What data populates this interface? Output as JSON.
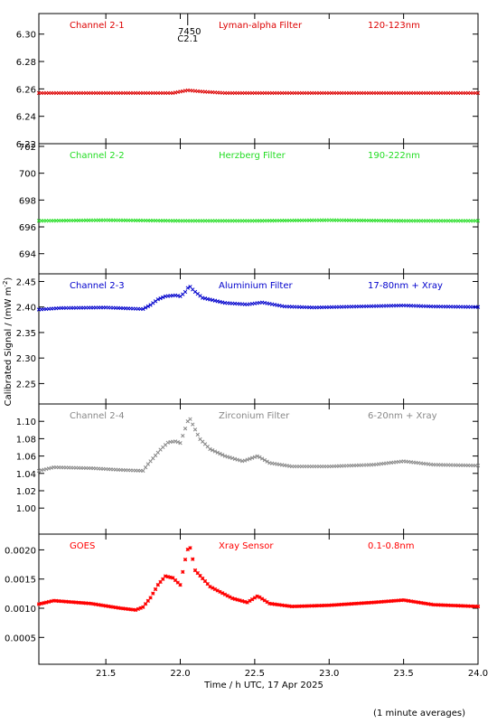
{
  "chart_data": {
    "type": "scatter",
    "xlabel": "Time / h UTC, 17 Apr 2025",
    "ylabel_main": "Calibrated Signal / (mW m",
    "ylabel_exp": "-2",
    "ylabel_close": ")",
    "footnote": "(1 minute averages)",
    "event_marker": {
      "x": 22.05,
      "line1": "7450",
      "line2": "C2.1"
    },
    "xlim": [
      21.05,
      24.0
    ],
    "xticks": [
      21.5,
      22.0,
      22.5,
      23.0,
      23.5,
      24.0
    ],
    "xtick_labels": [
      "21.5",
      "22.0",
      "22.5",
      "23.0",
      "23.5",
      "24.0"
    ],
    "panels": [
      {
        "labels": [
          "Channel 2-1",
          "Lyman-alpha Filter",
          "120-123nm"
        ],
        "color": "#dd0000",
        "marker": "cross",
        "ylim": [
          6.22,
          6.315
        ],
        "yticks": [
          6.22,
          6.24,
          6.26,
          6.28,
          6.3
        ],
        "ytick_labels": [
          "6.22",
          "6.24",
          "6.26",
          "6.28",
          "6.30"
        ],
        "series": [
          [
            21.05,
            6.257
          ],
          [
            21.8,
            6.257
          ],
          [
            21.95,
            6.257
          ],
          [
            22.05,
            6.259
          ],
          [
            22.15,
            6.258
          ],
          [
            22.3,
            6.257
          ],
          [
            24.0,
            6.257
          ]
        ]
      },
      {
        "labels": [
          "Channel 2-2",
          "Herzberg Filter",
          "190-222nm"
        ],
        "color": "#22dd22",
        "marker": "cross",
        "ylim": [
          692.5,
          702.2
        ],
        "yticks": [
          694,
          696,
          698,
          700,
          702
        ],
        "ytick_labels": [
          "694",
          "696",
          "698",
          "700",
          "702"
        ],
        "series": [
          [
            21.05,
            696.45
          ],
          [
            21.5,
            696.5
          ],
          [
            22.0,
            696.45
          ],
          [
            22.5,
            696.45
          ],
          [
            23.0,
            696.5
          ],
          [
            23.5,
            696.45
          ],
          [
            24.0,
            696.45
          ]
        ]
      },
      {
        "labels": [
          "Channel 2-3",
          "Aluminium Filter",
          "17-80nm + Xray"
        ],
        "color": "#0000cc",
        "marker": "cross",
        "ylim": [
          2.21,
          2.465
        ],
        "yticks": [
          2.25,
          2.3,
          2.35,
          2.4,
          2.45
        ],
        "ytick_labels": [
          "2.25",
          "2.30",
          "2.35",
          "2.40",
          "2.45"
        ],
        "series": [
          [
            21.05,
            2.395
          ],
          [
            21.2,
            2.398
          ],
          [
            21.5,
            2.399
          ],
          [
            21.75,
            2.396
          ],
          [
            21.8,
            2.404
          ],
          [
            21.85,
            2.415
          ],
          [
            21.9,
            2.421
          ],
          [
            21.97,
            2.423
          ],
          [
            22.0,
            2.421
          ],
          [
            22.03,
            2.428
          ],
          [
            22.06,
            2.442
          ],
          [
            22.09,
            2.432
          ],
          [
            22.15,
            2.418
          ],
          [
            22.3,
            2.408
          ],
          [
            22.45,
            2.405
          ],
          [
            22.55,
            2.409
          ],
          [
            22.7,
            2.401
          ],
          [
            22.9,
            2.399
          ],
          [
            23.2,
            2.401
          ],
          [
            23.5,
            2.403
          ],
          [
            23.7,
            2.401
          ],
          [
            24.0,
            2.4
          ]
        ]
      },
      {
        "labels": [
          "Channel 2-4",
          "Zirconium Filter",
          "6-20nm + Xray"
        ],
        "color": "#888888",
        "marker": "cross",
        "ylim": [
          0.97,
          1.12
        ],
        "yticks": [
          1.0,
          1.02,
          1.04,
          1.06,
          1.08,
          1.1
        ],
        "ytick_labels": [
          "1.00",
          "1.02",
          "1.04",
          "1.06",
          "1.08",
          "1.10"
        ],
        "series": [
          [
            21.05,
            1.043
          ],
          [
            21.15,
            1.047
          ],
          [
            21.4,
            1.046
          ],
          [
            21.6,
            1.044
          ],
          [
            21.75,
            1.043
          ],
          [
            21.78,
            1.05
          ],
          [
            21.82,
            1.058
          ],
          [
            21.87,
            1.068
          ],
          [
            21.92,
            1.076
          ],
          [
            21.97,
            1.077
          ],
          [
            22.0,
            1.075
          ],
          [
            22.03,
            1.09
          ],
          [
            22.06,
            1.105
          ],
          [
            22.09,
            1.094
          ],
          [
            22.13,
            1.08
          ],
          [
            22.2,
            1.068
          ],
          [
            22.3,
            1.06
          ],
          [
            22.42,
            1.054
          ],
          [
            22.52,
            1.06
          ],
          [
            22.6,
            1.052
          ],
          [
            22.75,
            1.048
          ],
          [
            23.0,
            1.048
          ],
          [
            23.3,
            1.05
          ],
          [
            23.5,
            1.054
          ],
          [
            23.7,
            1.05
          ],
          [
            24.0,
            1.049
          ]
        ]
      },
      {
        "labels": [
          "GOES",
          "Xray Sensor",
          "0.1-0.8nm"
        ],
        "color": "#ff0000",
        "marker": "star",
        "ylim": [
          4e-05,
          0.00227
        ],
        "yticks": [
          0.0005,
          0.001,
          0.0015,
          0.002
        ],
        "ytick_labels": [
          "0.0005",
          "0.0010",
          "0.0015",
          "0.0020"
        ],
        "series": [
          [
            21.05,
            0.00107
          ],
          [
            21.15,
            0.00113
          ],
          [
            21.4,
            0.00108
          ],
          [
            21.6,
            0.001
          ],
          [
            21.7,
            0.00097
          ],
          [
            21.75,
            0.00102
          ],
          [
            21.8,
            0.00118
          ],
          [
            21.85,
            0.0014
          ],
          [
            21.9,
            0.00155
          ],
          [
            21.95,
            0.00152
          ],
          [
            22.0,
            0.0014
          ],
          [
            22.03,
            0.0018
          ],
          [
            22.06,
            0.00211
          ],
          [
            22.1,
            0.00165
          ],
          [
            22.2,
            0.00137
          ],
          [
            22.35,
            0.00117
          ],
          [
            22.45,
            0.0011
          ],
          [
            22.52,
            0.00121
          ],
          [
            22.6,
            0.00108
          ],
          [
            22.75,
            0.00103
          ],
          [
            23.0,
            0.00105
          ],
          [
            23.3,
            0.0011
          ],
          [
            23.5,
            0.00114
          ],
          [
            23.7,
            0.00106
          ],
          [
            24.0,
            0.00103
          ]
        ]
      }
    ]
  }
}
